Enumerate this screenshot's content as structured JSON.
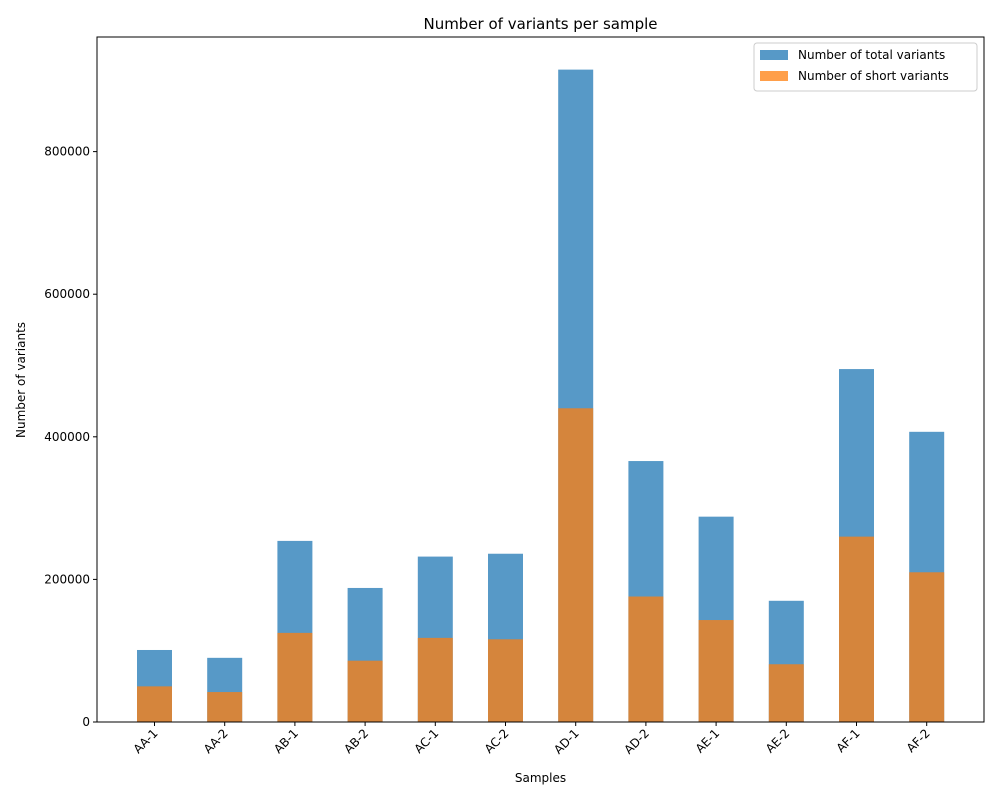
{
  "chart_data": {
    "type": "bar",
    "title": "Number of variants per sample",
    "xlabel": "Samples",
    "ylabel": "Number of variants",
    "categories": [
      "AA-1",
      "AA-2",
      "AB-1",
      "AB-2",
      "AC-1",
      "AC-2",
      "AD-1",
      "AD-2",
      "AE-1",
      "AE-2",
      "AF-1",
      "AF-2"
    ],
    "series": [
      {
        "name": "Number of total variants",
        "color": "#1f77b4",
        "values": [
          101000,
          90000,
          254000,
          188000,
          232000,
          236000,
          915000,
          366000,
          288000,
          170000,
          495000,
          407000
        ]
      },
      {
        "name": "Number of short variants",
        "color": "#ff7f0e",
        "values": [
          50000,
          42000,
          125000,
          86000,
          118000,
          116000,
          440000,
          176000,
          143000,
          81000,
          260000,
          210000
        ]
      }
    ],
    "yticks": [
      0,
      200000,
      400000,
      600000,
      800000
    ],
    "ytick_labels": [
      "0",
      "200000",
      "400000",
      "600000",
      "800000"
    ],
    "ylim": [
      0,
      960750
    ],
    "legend_position": "top-right",
    "grid": false,
    "bar_opacity": 0.75
  }
}
